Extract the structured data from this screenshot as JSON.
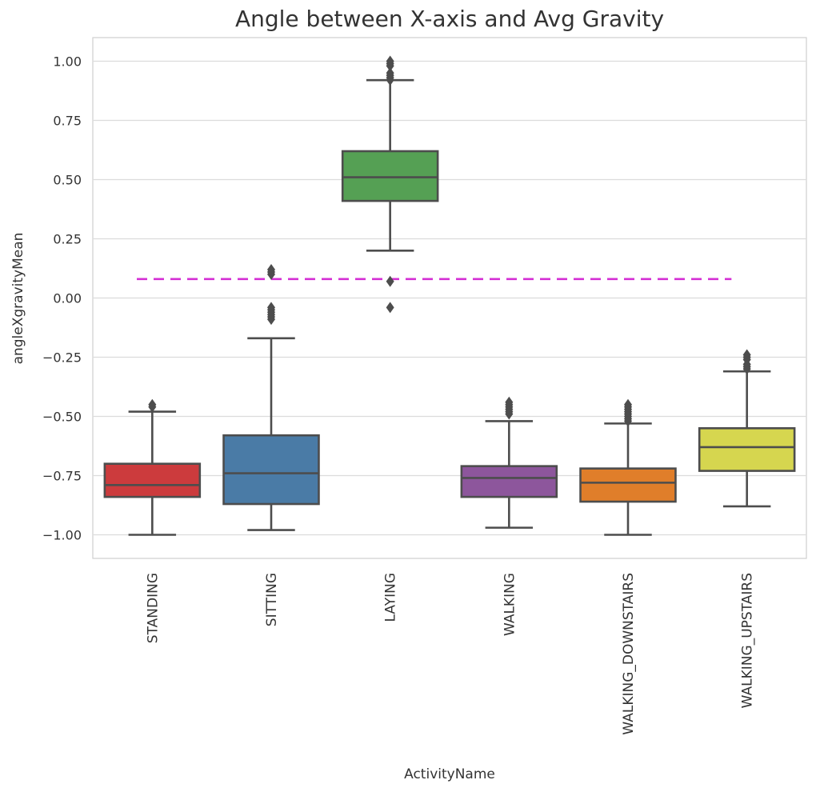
{
  "chart_data": {
    "type": "box",
    "title": "Angle between X-axis and Avg Gravity",
    "xlabel": "ActivityName",
    "ylabel": "angleXgravityMean",
    "ylim": [
      -1.1,
      1.1
    ],
    "yticks": [
      "−1.00",
      "−0.75",
      "−0.50",
      "−0.25",
      "0.00",
      "0.25",
      "0.50",
      "0.75",
      "1.00"
    ],
    "ytick_values": [
      -1.0,
      -0.75,
      -0.5,
      -0.25,
      0.0,
      0.25,
      0.5,
      0.75,
      1.0
    ],
    "grid": true,
    "reference_line": {
      "y": 0.08,
      "x_from_category": "STANDING",
      "x_to_category": "WALKING_UPSTAIRS",
      "color": "#d42fd4",
      "style": "dashed"
    },
    "categories": [
      "STANDING",
      "SITTING",
      "LAYING",
      "WALKING",
      "WALKING_DOWNSTAIRS",
      "WALKING_UPSTAIRS"
    ],
    "boxes": [
      {
        "name": "STANDING",
        "color": "#cc3b3d",
        "whisker_low": -1.0,
        "q1": -0.84,
        "median": -0.79,
        "q3": -0.7,
        "whisker_high": -0.48,
        "outliers": [
          -0.45,
          -0.46
        ]
      },
      {
        "name": "SITTING",
        "color": "#4a7ba6",
        "whisker_low": -0.98,
        "q1": -0.87,
        "median": -0.74,
        "q3": -0.58,
        "whisker_high": -0.17,
        "outliers": [
          -0.04,
          -0.05,
          -0.06,
          -0.07,
          -0.08,
          -0.09,
          0.1,
          0.11,
          0.12
        ]
      },
      {
        "name": "LAYING",
        "color": "#55a054",
        "whisker_low": 0.2,
        "q1": 0.41,
        "median": 0.51,
        "q3": 0.62,
        "whisker_high": 0.92,
        "outliers": [
          -0.04,
          0.07,
          0.92,
          0.93,
          0.94,
          0.95,
          0.98,
          0.99,
          1.0
        ]
      },
      {
        "name": "WALKING",
        "color": "#8d569c",
        "whisker_low": -0.97,
        "q1": -0.84,
        "median": -0.76,
        "q3": -0.71,
        "whisker_high": -0.52,
        "outliers": [
          -0.44,
          -0.45,
          -0.46,
          -0.47,
          -0.48,
          -0.49
        ]
      },
      {
        "name": "WALKING_DOWNSTAIRS",
        "color": "#e07e2a",
        "whisker_low": -1.0,
        "q1": -0.86,
        "median": -0.78,
        "q3": -0.72,
        "whisker_high": -0.53,
        "outliers": [
          -0.45,
          -0.46,
          -0.47,
          -0.48,
          -0.49,
          -0.5,
          -0.51,
          -0.52
        ]
      },
      {
        "name": "WALKING_UPSTAIRS",
        "color": "#d6d64f",
        "whisker_low": -0.88,
        "q1": -0.73,
        "median": -0.63,
        "q3": -0.55,
        "whisker_high": -0.31,
        "outliers": [
          -0.24,
          -0.25,
          -0.26,
          -0.28,
          -0.29,
          -0.3
        ]
      }
    ]
  }
}
